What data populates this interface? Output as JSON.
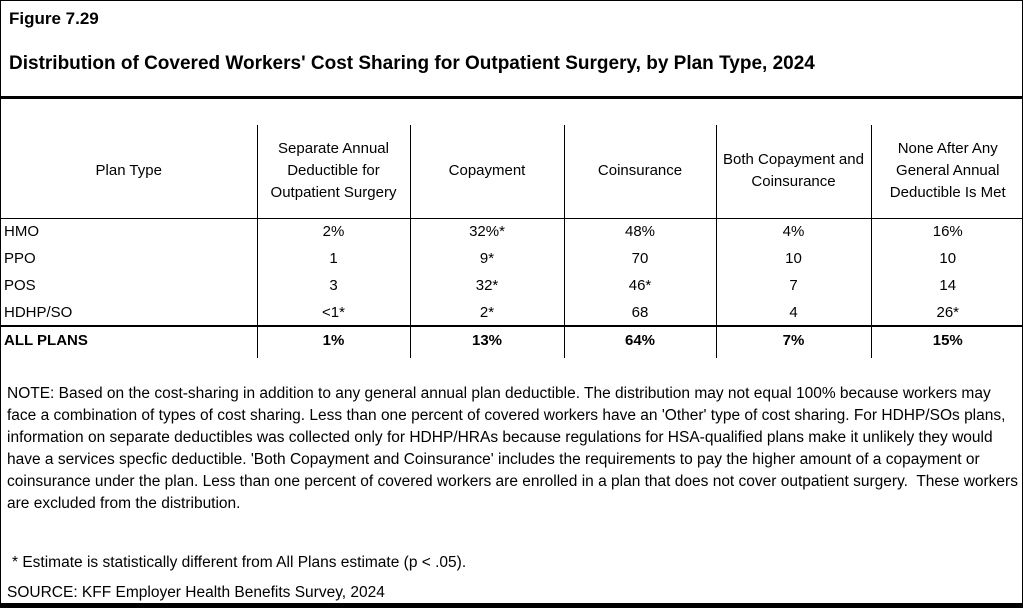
{
  "page": {
    "figure_label": "Figure 7.29",
    "title": "Distribution of Covered Workers' Cost Sharing for Outpatient Surgery, by Plan Type, 2024"
  },
  "colors": {
    "background": "#ffffff",
    "text": "#000000",
    "border": "#000000"
  },
  "table": {
    "columns": [
      "Plan Type",
      "Separate Annual Deductible for Outpatient Surgery",
      "Copayment",
      "Coinsurance",
      "Both Copayment and Coinsurance",
      "None After Any General Annual Deductible Is Met"
    ],
    "rows": [
      {
        "plan_type": "HMO",
        "values": [
          "2%",
          "32%*",
          "48%",
          "4%",
          "16%"
        ]
      },
      {
        "plan_type": "PPO",
        "values": [
          "1",
          "9*",
          "70",
          "10",
          "10"
        ]
      },
      {
        "plan_type": "POS",
        "values": [
          "3",
          "32*",
          "46*",
          "7",
          "14"
        ]
      },
      {
        "plan_type": "HDHP/SO",
        "values": [
          "<1*",
          "2*",
          "68",
          "4",
          "26*"
        ]
      }
    ],
    "total_row": {
      "plan_type": "ALL PLANS",
      "values": [
        "1%",
        "13%",
        "64%",
        "7%",
        "15%"
      ]
    }
  },
  "notes": {
    "note": "NOTE: Based on the cost-sharing in addition to any general annual plan deductible. The distribution may not equal 100% because workers may face a combination of types of cost sharing. Less than one percent of covered workers have an 'Other' type of cost sharing. For HDHP/SOs plans, information on separate deductibles was collected only for HDHP/HRAs because regulations for HSA-qualified plans make it unlikely they would have a services specfic deductible. 'Both Copayment and Coinsurance' includes the requirements to pay the higher amount of a copayment or coinsurance under the plan. Less than one percent of covered workers are enrolled in a plan that does not cover outpatient surgery.  These workers are excluded from the distribution.",
    "footnote": "* Estimate is statistically different from All Plans estimate (p < .05).",
    "source": "SOURCE: KFF Employer Health Benefits Survey, 2024"
  },
  "chart_data": {
    "type": "table",
    "title": "Distribution of Covered Workers' Cost Sharing for Outpatient Surgery, by Plan Type, 2024",
    "columns": [
      "Plan Type",
      "Separate Annual Deductible for Outpatient Surgery",
      "Copayment",
      "Coinsurance",
      "Both Copayment and Coinsurance",
      "None After Any General Annual Deductible Is Met"
    ],
    "rows": [
      [
        "HMO",
        "2%",
        "32%*",
        "48%",
        "4%",
        "16%"
      ],
      [
        "PPO",
        "1",
        "9*",
        "70",
        "10",
        "10"
      ],
      [
        "POS",
        "3",
        "32*",
        "46*",
        "7",
        "14"
      ],
      [
        "HDHP/SO",
        "<1*",
        "2*",
        "68",
        "4",
        "26*"
      ],
      [
        "ALL PLANS",
        "1%",
        "13%",
        "64%",
        "7%",
        "15%"
      ]
    ]
  }
}
